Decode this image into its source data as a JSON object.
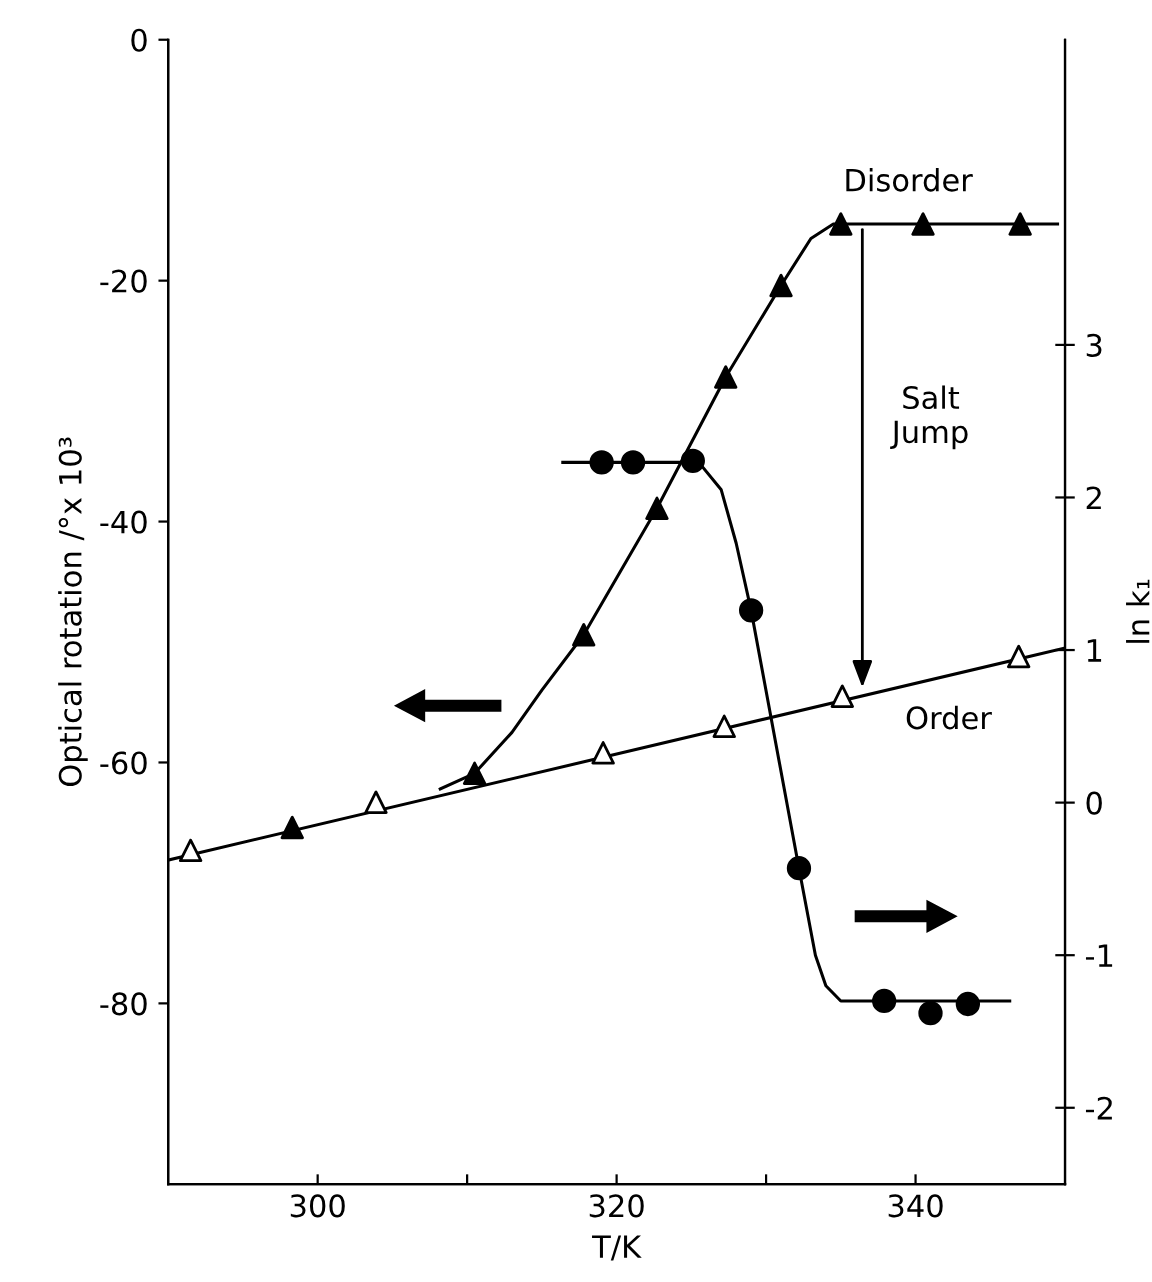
{
  "chart_data": {
    "type": "scatter",
    "xlabel": "T/K",
    "ylabel": "Optical rotation /°x 10³",
    "y2label": "ln k₁",
    "xlim": [
      290,
      350
    ],
    "xticks": [
      300,
      {
        "value": 310,
        "label": null
      },
      320,
      {
        "value": 330,
        "label": null
      },
      340
    ],
    "ylim": [
      -95,
      0
    ],
    "yticks": [
      0,
      -20,
      -40,
      -60,
      -80
    ],
    "y2lim": [
      -2.5,
      5.0
    ],
    "y2ticks": [
      -2,
      -1,
      0,
      1,
      2,
      3
    ],
    "grid": false,
    "series": [
      {
        "type": "line",
        "color": "#000000",
        "marker": "none",
        "line_style": "solid",
        "x": [
          290,
          350
        ],
        "values": [
          -68.1,
          -50.5
        ]
      },
      {
        "type": "line",
        "color": "#000000",
        "marker": "none",
        "line_style": "solid",
        "x": [
          308.2,
          310.5,
          313,
          315,
          317.8,
          322.7,
          327.3,
          331,
          333,
          334.5,
          349.5
        ],
        "values": [
          -62.2,
          -60.9,
          -57.5,
          -54,
          -49.4,
          -38.9,
          -28.0,
          -20.4,
          -16.5,
          -15.3,
          -15.3
        ]
      },
      {
        "type": "line",
        "axis": "y2",
        "color": "#000000",
        "marker": "none",
        "line_style": "solid",
        "x": [
          316.4,
          325.5,
          327,
          328,
          329,
          332.2,
          333.3,
          334,
          335,
          346.3
        ],
        "values": [
          2.23,
          2.23,
          2.05,
          1.7,
          1.26,
          -0.43,
          -1.0,
          -1.2,
          -1.3,
          -1.3
        ]
      },
      {
        "color": "#ffffff",
        "marker": "triangle",
        "x": [
          291.5,
          303.9,
          319.1,
          327.2,
          335.1,
          346.9
        ],
        "values": [
          -67.3,
          -63.3,
          -59.2,
          -57.0,
          -54.5,
          -51.2
        ]
      },
      {
        "color": "#000000",
        "marker": "triangle",
        "x": [
          298.3,
          310.5,
          317.8,
          322.7,
          327.3,
          331.0,
          335.0,
          340.5,
          347.0
        ],
        "values": [
          -65.4,
          -60.9,
          -49.4,
          -38.9,
          -28.0,
          -20.4,
          -15.3,
          -15.3,
          -15.3
        ]
      },
      {
        "axis": "y2",
        "color": "#000000",
        "marker": "circle",
        "x": [
          319.0,
          321.1,
          325.1,
          329.0,
          332.2,
          337.9,
          341.0,
          343.5
        ],
        "values": [
          2.23,
          2.23,
          2.24,
          1.26,
          -0.43,
          -1.3,
          -1.38,
          -1.32
        ]
      }
    ],
    "annotations": [
      "Disorder",
      "Salt\nJump",
      "Order"
    ]
  }
}
